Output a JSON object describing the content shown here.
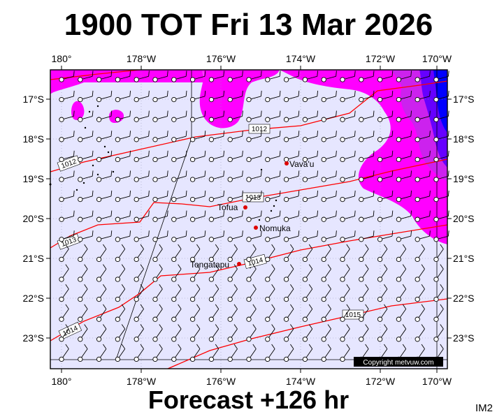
{
  "title": "1900 TOT Fri 13 Mar 2026",
  "footer": "Forecast +126 hr",
  "corner_label": "IM2",
  "copyright": "Copyright metvuw.com",
  "lon_labels": [
    "180°",
    "178°W",
    "176°W",
    "174°W",
    "172°W",
    "170°W"
  ],
  "lat_labels": [
    "17°S",
    "18°S",
    "19°S",
    "20°S",
    "21°S",
    "22°S",
    "23°S"
  ],
  "places": [
    {
      "name": "Vava'u",
      "lon": -174.0,
      "lat": -18.65
    },
    {
      "name": "Tofua",
      "lon": -175.05,
      "lat": -19.75
    },
    {
      "name": "Nomuka",
      "lon": -174.8,
      "lat": -20.25
    },
    {
      "name": "Tongatapu",
      "lon": -175.2,
      "lat": -21.13
    }
  ],
  "isobar_labels": [
    "1012",
    "1012",
    "1013",
    "1013",
    "1014",
    "1014",
    "1015"
  ],
  "colors": {
    "background": "#e6e6ff",
    "rain_light": "#ff00ff",
    "rain_mid": "#cc22ee",
    "rain_heavy": "#6600ff",
    "rain_max": "#0000ff",
    "isobar": "#ff0000",
    "place_dot": "#dd0000"
  }
}
